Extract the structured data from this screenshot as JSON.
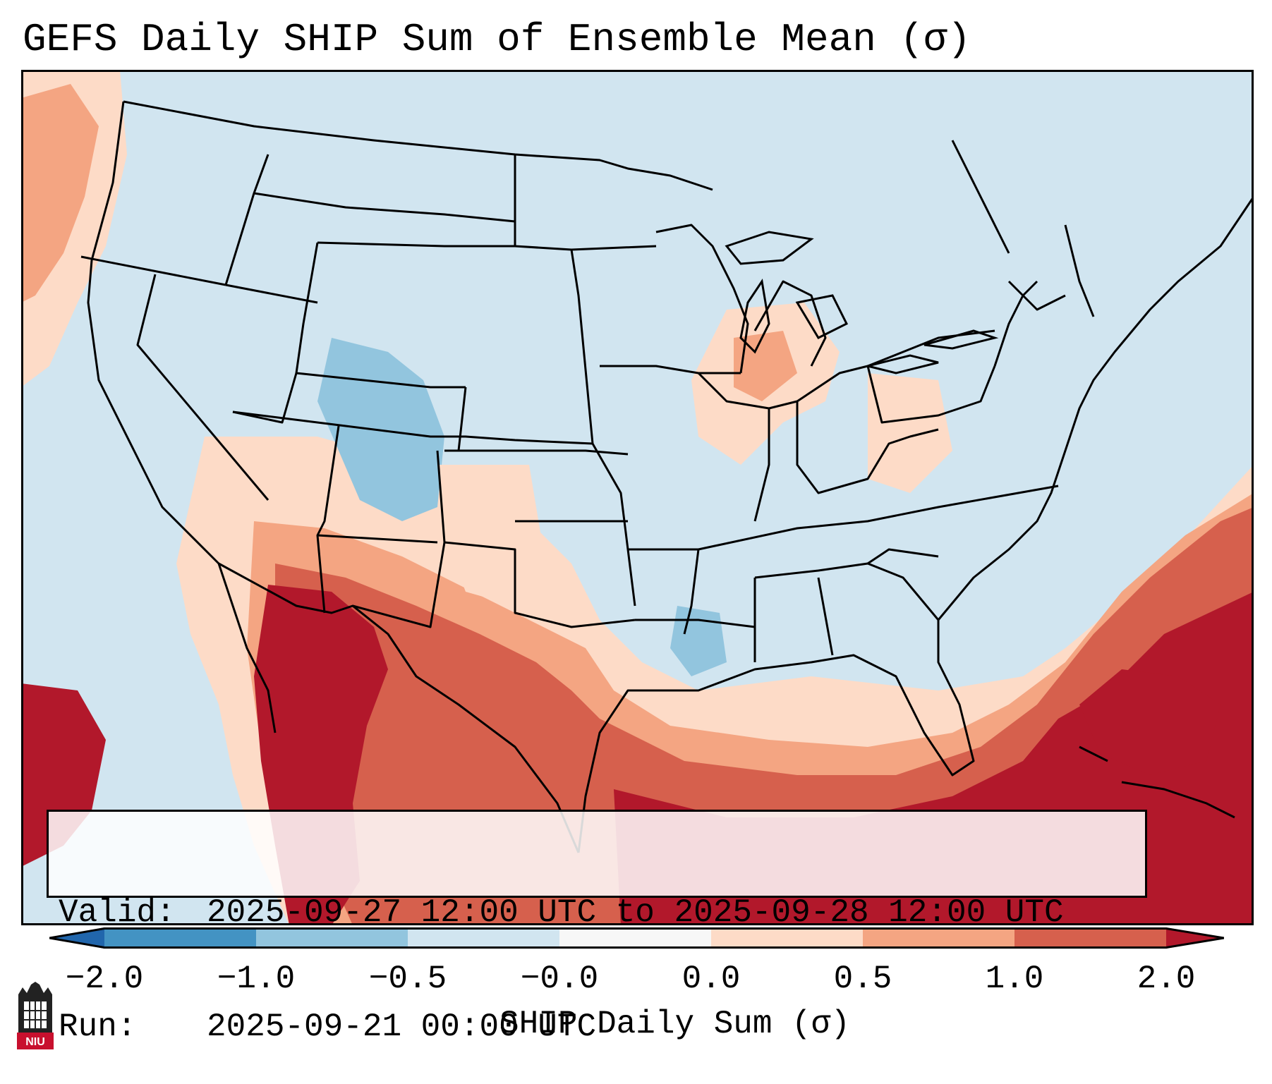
{
  "title": "GEFS Daily SHIP Sum of Ensemble Mean (σ)",
  "info": {
    "valid_label": "Valid:",
    "valid_value": "2025-09-27 12:00 UTC to 2025-09-28 12:00 UTC",
    "run_label": "Run:",
    "run_value": "2025-09-21 00:00 UTC"
  },
  "colorbar": {
    "label": "SHIP Daily Sum (σ)",
    "ticks": [
      "−2.0",
      "−1.0",
      "−0.5",
      "−0.0",
      "0.0",
      "0.5",
      "1.0",
      "2.0"
    ],
    "colors": [
      "#4393c3",
      "#92c5de",
      "#d1e5f0",
      "#f7f7f7",
      "#fddbc7",
      "#f4a582",
      "#d6604d",
      "#b2182b"
    ],
    "extend_low_color": "#2166ac",
    "extend_high_color": "#b2182b"
  },
  "map": {
    "region": "Continental United States",
    "background_color": "#d1e5f0",
    "field_colors": {
      "strong_neg": "#92c5de",
      "weak_neg": "#d1e5f0",
      "weak_pos": "#fddbc7",
      "mod_pos": "#f4a582",
      "high_pos": "#d6604d",
      "very_high_pos": "#b2182b"
    }
  },
  "logo": {
    "text": "NIU",
    "color": "#c8102e"
  }
}
